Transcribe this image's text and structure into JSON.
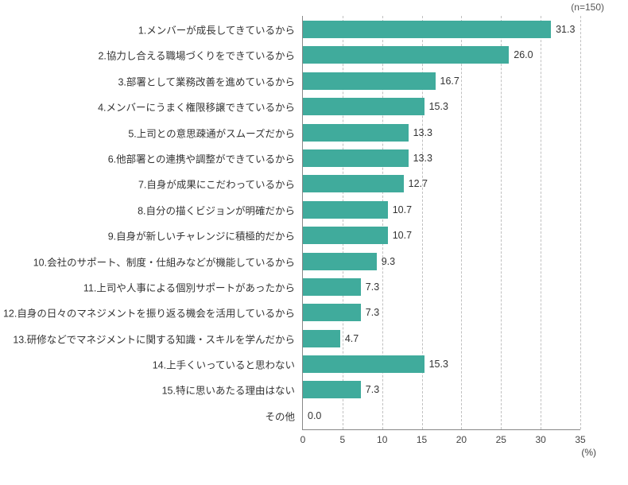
{
  "chart": {
    "type": "bar",
    "orientation": "horizontal",
    "sample_size_label": "(n=150)",
    "x_axis": {
      "min": 0,
      "max": 35,
      "tick_step": 5,
      "unit_label": "(%)"
    },
    "bar_color": "#40ab9c",
    "grid_color": "#c0c0c0",
    "axis_color": "#888888",
    "background_color": "#ffffff",
    "text_color": "#333333",
    "label_fontsize": 12.5,
    "tick_fontsize": 12,
    "value_decimals": 1,
    "items": [
      {
        "label": "1.メンバーが成長してきているから",
        "value": 31.3
      },
      {
        "label": "2.協力し合える職場づくりをできているから",
        "value": 26.0
      },
      {
        "label": "3.部署として業務改善を進めているから",
        "value": 16.7
      },
      {
        "label": "4.メンバーにうまく権限移譲できているから",
        "value": 15.3
      },
      {
        "label": "5.上司との意思疎通がスムーズだから",
        "value": 13.3
      },
      {
        "label": "6.他部署との連携や調整ができているから",
        "value": 13.3
      },
      {
        "label": "7.自身が成果にこだわっているから",
        "value": 12.7
      },
      {
        "label": "8.自分の描くビジョンが明確だから",
        "value": 10.7
      },
      {
        "label": "9.自身が新しいチャレンジに積極的だから",
        "value": 10.7
      },
      {
        "label": "10.会社のサポート、制度・仕組みなどが機能しているから",
        "value": 9.3
      },
      {
        "label": "11.上司や人事による個別サポートがあったから",
        "value": 7.3
      },
      {
        "label": "12.自身の日々のマネジメントを振り返る機会を活用しているから",
        "value": 7.3
      },
      {
        "label": "13.研修などでマネジメントに関する知識・スキルを学んだから",
        "value": 4.7
      },
      {
        "label": "14.上手くいっていると思わない",
        "value": 15.3
      },
      {
        "label": "15.特に思いあたる理由はない",
        "value": 7.3
      },
      {
        "label": "その他",
        "value": 0.0
      }
    ]
  }
}
